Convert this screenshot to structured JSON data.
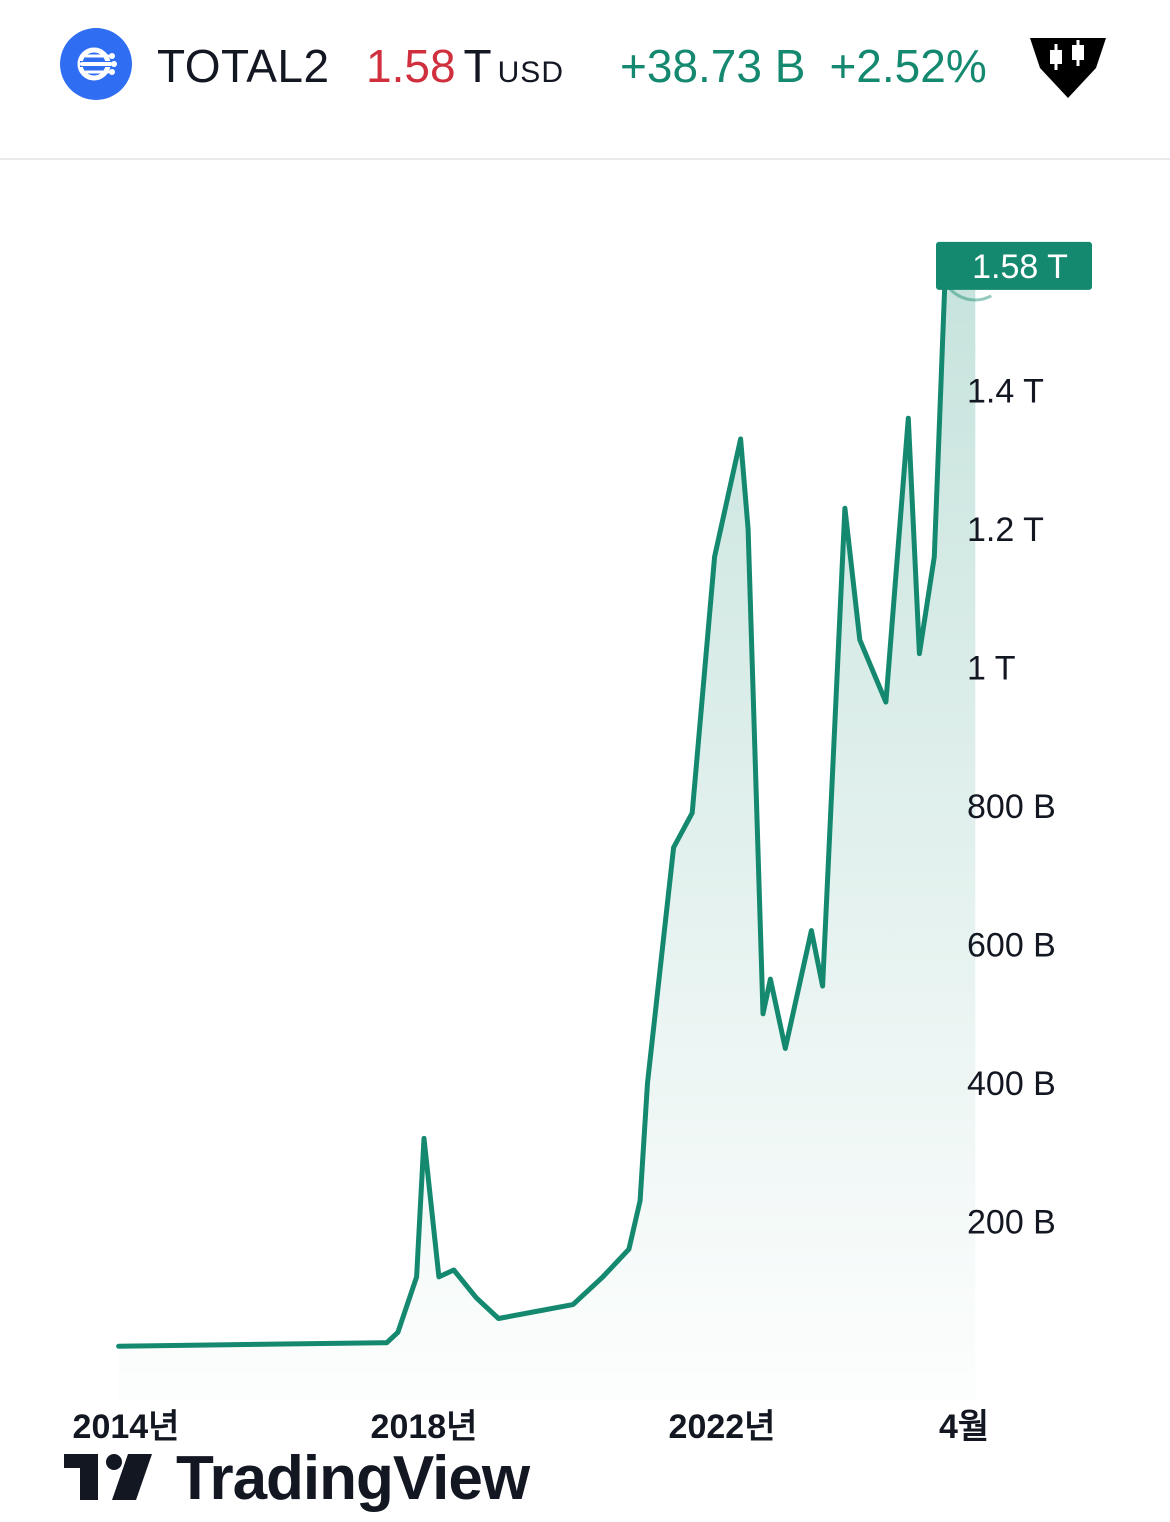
{
  "header": {
    "symbol": "TOTAL2",
    "price_value": "1.58",
    "price_unit": "T",
    "currency": "USD",
    "change_abs": "+38.73 B",
    "change_pct": "+2.52%",
    "logo_icon": "total2-market-cap-icon",
    "badge_icon": "candlestick-badge-icon"
  },
  "colors": {
    "line": "#14896f",
    "price_down": "#d0303d",
    "accent_blue": "#2f6ef2",
    "last_price_label_bg": "#14896f"
  },
  "watermark": {
    "text": "TradingView"
  },
  "chart_data": {
    "type": "area",
    "y_axis_position": "right",
    "ylim": [
      0,
      1650
    ],
    "y_ticks": [
      {
        "value": 200,
        "label": "200 B"
      },
      {
        "value": 400,
        "label": "400 B"
      },
      {
        "value": 600,
        "label": "600 B"
      },
      {
        "value": 800,
        "label": "800 B"
      },
      {
        "value": 1000,
        "label": "1 T"
      },
      {
        "value": 1200,
        "label": "1.2 T"
      },
      {
        "value": 1400,
        "label": "1.4 T"
      }
    ],
    "x_ticks": [
      {
        "value": 2014.0,
        "label": "2014년"
      },
      {
        "value": 2018.0,
        "label": "2018년"
      },
      {
        "value": 2022.0,
        "label": "2022년"
      },
      {
        "value": 2025.25,
        "label": "4월"
      }
    ],
    "last_value_label": "1.58 T",
    "series": [
      {
        "x": [
          2013.9,
          2017.5,
          2017.65,
          2017.9,
          2018.0,
          2018.2,
          2018.4,
          2018.7,
          2019.0,
          2019.5,
          2020.0,
          2020.4,
          2020.75,
          2020.9,
          2021.0,
          2021.35,
          2021.6,
          2021.9,
          2022.25,
          2022.35,
          2022.55,
          2022.65,
          2022.85,
          2023.2,
          2023.35,
          2023.65,
          2023.85,
          2024.2,
          2024.5,
          2024.65,
          2024.85,
          2025.0,
          2025.2,
          2025.4
        ],
        "y": [
          20,
          25,
          40,
          120,
          320,
          120,
          130,
          90,
          60,
          70,
          80,
          120,
          160,
          230,
          400,
          740,
          790,
          1160,
          1330,
          1200,
          500,
          550,
          450,
          620,
          540,
          1230,
          1040,
          950,
          1360,
          1020,
          1160,
          1580,
          1580,
          1580
        ],
        "y_units": "billion USD"
      }
    ]
  }
}
